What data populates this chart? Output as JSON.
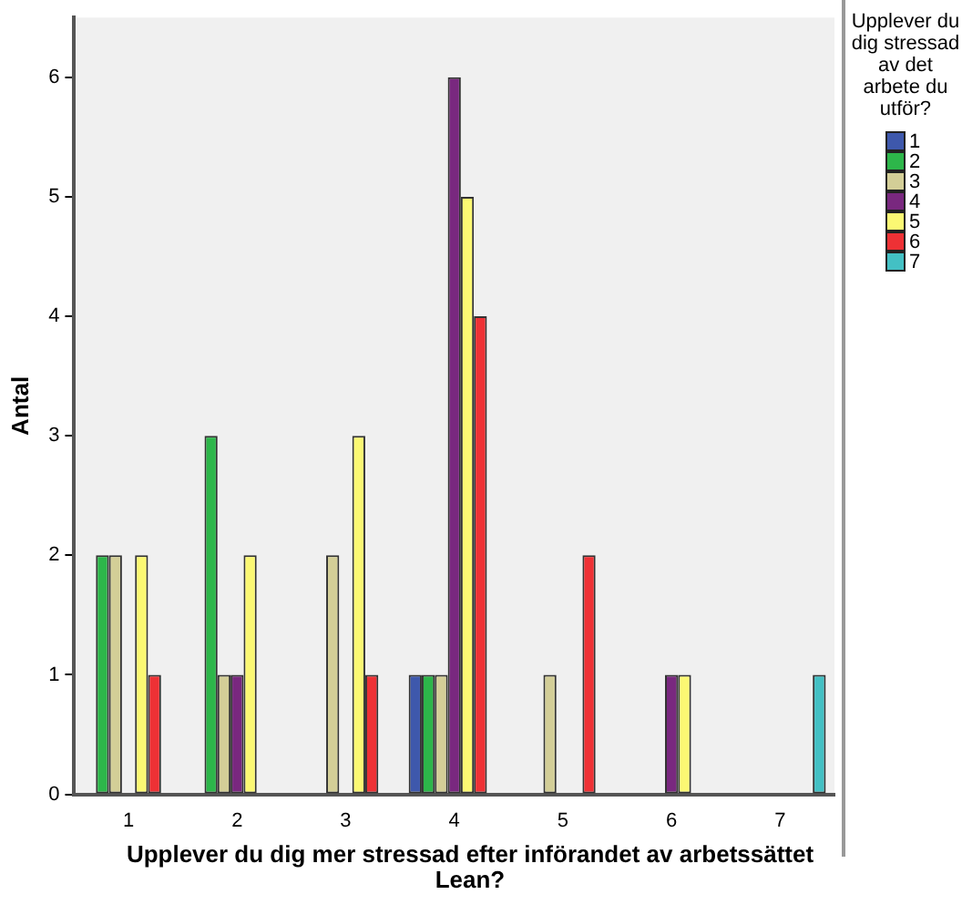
{
  "chart_data": {
    "type": "bar",
    "xlabel": "Upplever du dig mer stressad efter införandet av arbetssättet Lean?",
    "ylabel": "Antal",
    "legend_title": "Upplever du dig stressad av det arbete du utför?",
    "legend": "right",
    "grid": false,
    "categories": [
      "1",
      "2",
      "3",
      "4",
      "5",
      "6",
      "7"
    ],
    "ylim": [
      0,
      6.5
    ],
    "yticks": [
      0,
      1,
      2,
      3,
      4,
      5,
      6
    ],
    "series": [
      {
        "name": "1",
        "color": "#3e58ac",
        "values": [
          0,
          0,
          0,
          1,
          0,
          0,
          0
        ]
      },
      {
        "name": "2",
        "color": "#2db64a",
        "values": [
          2,
          3,
          0,
          1,
          0,
          0,
          0
        ]
      },
      {
        "name": "3",
        "color": "#d3ce97",
        "values": [
          2,
          1,
          2,
          1,
          1,
          0,
          0
        ]
      },
      {
        "name": "4",
        "color": "#79287f",
        "values": [
          0,
          1,
          0,
          6,
          0,
          1,
          0
        ]
      },
      {
        "name": "5",
        "color": "#fbf873",
        "values": [
          2,
          2,
          3,
          5,
          0,
          1,
          0
        ]
      },
      {
        "name": "6",
        "color": "#ee3135",
        "values": [
          1,
          0,
          1,
          4,
          2,
          0,
          0
        ]
      },
      {
        "name": "7",
        "color": "#43c0c4",
        "values": [
          0,
          0,
          0,
          0,
          0,
          0,
          1
        ]
      }
    ]
  }
}
